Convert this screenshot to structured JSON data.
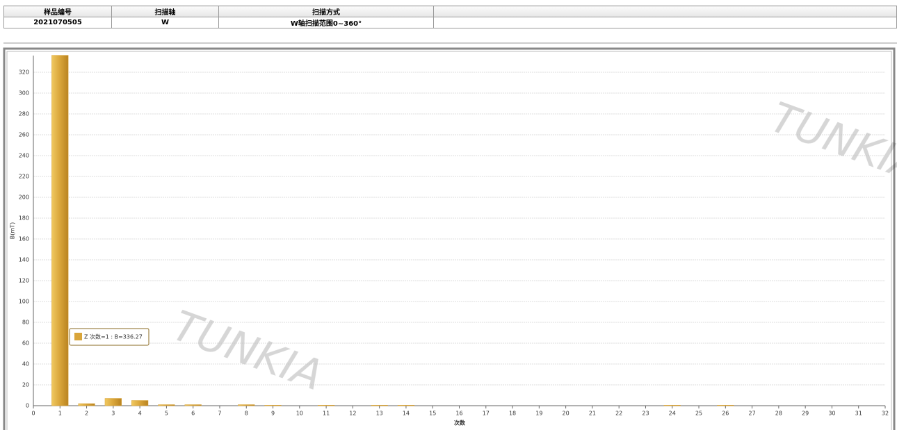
{
  "table": {
    "headers": [
      "样品编号",
      "扫描轴",
      "扫描方式"
    ],
    "rows": [
      [
        "2021070505",
        "W",
        "W轴扫描范围0~360°"
      ]
    ]
  },
  "watermark": "TUNKIA",
  "chart_data": {
    "type": "bar",
    "series_name": "Z",
    "color": "#d9a53a",
    "x": [
      1,
      2,
      3,
      4,
      5,
      6,
      7,
      8,
      9,
      10,
      11,
      12,
      13,
      14,
      15,
      16,
      17,
      18,
      19,
      20,
      21,
      22,
      23,
      24,
      25,
      26,
      27,
      28,
      29,
      30,
      31
    ],
    "values": [
      336.27,
      2,
      7,
      5,
      1,
      1,
      0,
      1,
      0.5,
      0,
      0.5,
      0,
      0.5,
      0.5,
      0,
      0,
      0,
      0,
      0,
      0,
      0,
      0,
      0,
      0.5,
      0,
      0.5,
      0,
      0,
      0,
      0,
      0
    ],
    "xlim": [
      0,
      32
    ],
    "xticks": [
      0,
      1,
      2,
      3,
      4,
      5,
      6,
      7,
      8,
      9,
      10,
      11,
      12,
      13,
      14,
      15,
      16,
      17,
      18,
      19,
      20,
      21,
      22,
      23,
      24,
      25,
      26,
      27,
      28,
      29,
      30,
      31,
      32
    ],
    "ylim": [
      0,
      336
    ],
    "yticks": [
      0,
      20,
      40,
      60,
      80,
      100,
      120,
      140,
      160,
      180,
      200,
      220,
      240,
      260,
      280,
      300,
      320
    ],
    "ylabel": "B(mT)",
    "xlabel": "次数",
    "grid": true,
    "tooltip": "Z 次数=1 : B=336.27"
  }
}
